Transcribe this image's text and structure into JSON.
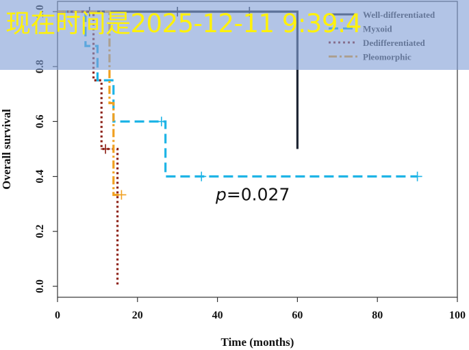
{
  "overlay": {
    "timestamp_text": "现在时间是2025-12-11 9:39:4"
  },
  "chart_data": {
    "type": "line",
    "subtype": "kaplan-meier",
    "title": "",
    "xlabel": "Time (months)",
    "ylabel": "Overall survival",
    "xlim": [
      0,
      100
    ],
    "ylim": [
      0,
      1
    ],
    "xticks": [
      0,
      20,
      40,
      60,
      80,
      100
    ],
    "yticks": [
      0.0,
      0.2,
      0.4,
      0.6,
      0.8,
      1.0
    ],
    "xtick_labels": [
      "0",
      "20",
      "40",
      "60",
      "80",
      "100"
    ],
    "ytick_labels": [
      "0.0",
      "0.2",
      "0.4",
      "0.6",
      "0.8",
      "1.0"
    ],
    "legend_position": "top-right",
    "annotation": {
      "prefix": "p",
      "text": "=0.027",
      "x": 44,
      "y": 0.3
    },
    "series": [
      {
        "name": "Well-differentiated",
        "color": "#1f2633",
        "dash": "solid",
        "steps": [
          [
            0,
            1.0
          ],
          [
            60,
            1.0
          ],
          [
            60,
            0.5
          ]
        ],
        "censors": [
          [
            8,
            1.0
          ],
          [
            30,
            1.0
          ],
          [
            48,
            1.0
          ]
        ]
      },
      {
        "name": "Myxoid",
        "color": "#1eb4e6",
        "dash": "longdash",
        "steps": [
          [
            0,
            1.0
          ],
          [
            7,
            1.0
          ],
          [
            7,
            0.875
          ],
          [
            10,
            0.875
          ],
          [
            10,
            0.75
          ],
          [
            14,
            0.75
          ],
          [
            14,
            0.6
          ],
          [
            27,
            0.6
          ],
          [
            27,
            0.4
          ],
          [
            90,
            0.4
          ]
        ],
        "censors": [
          [
            26,
            0.6
          ],
          [
            36,
            0.4
          ],
          [
            90,
            0.4
          ]
        ]
      },
      {
        "name": "Dedifferentiated",
        "color": "#8c1f14",
        "dash": "dotted",
        "steps": [
          [
            0,
            1.0
          ],
          [
            9,
            1.0
          ],
          [
            9,
            0.75
          ],
          [
            11,
            0.75
          ],
          [
            11,
            0.5
          ],
          [
            15,
            0.5
          ],
          [
            15,
            0.0
          ]
        ],
        "censors": [
          [
            12,
            0.5
          ]
        ]
      },
      {
        "name": "Pleomorphic",
        "color": "#f0a020",
        "dash": "dotdash",
        "steps": [
          [
            0,
            1.0
          ],
          [
            13,
            1.0
          ],
          [
            13,
            0.667
          ],
          [
            14,
            0.667
          ],
          [
            14,
            0.333
          ],
          [
            16,
            0.333
          ]
        ],
        "censors": [
          [
            16,
            0.333
          ]
        ]
      }
    ]
  }
}
